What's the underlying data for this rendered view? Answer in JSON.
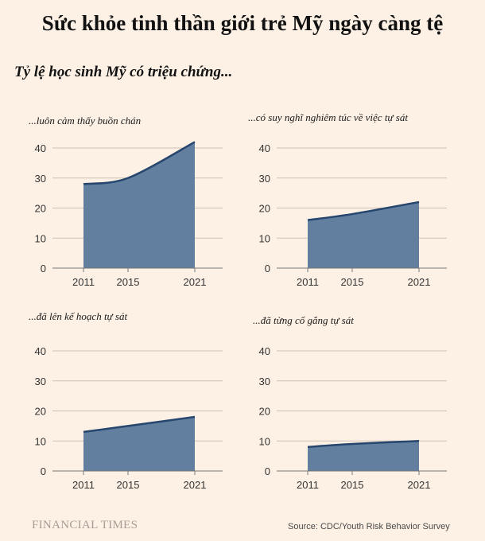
{
  "title": "Sức khỏe tinh thần giới trẻ Mỹ ngày càng tệ",
  "subtitle": "Tỷ lệ học sinh Mỹ có triệu chứng...",
  "branding": "FINANCIAL TIMES",
  "source": "Source: CDC/Youth Risk Behavior Survey",
  "colors": {
    "background": "#fdf1e5",
    "fill": "#627f9f",
    "line": "#27466e",
    "grid": "#cdbfb3",
    "axis": "#777777"
  },
  "chart_data": [
    {
      "type": "area",
      "title": "...luôn cảm thấy buồn chán",
      "x": [
        "2011",
        "2015",
        "2021"
      ],
      "values": [
        28,
        30,
        42
      ],
      "ylim": [
        0,
        40
      ],
      "yticks": [
        0,
        10,
        20,
        30,
        40
      ],
      "xticks": [
        "2011",
        "2015",
        "2021"
      ],
      "grid": true
    },
    {
      "type": "area",
      "title": "...có suy nghĩ nghiêm túc về việc tự sát",
      "x": [
        "2011",
        "2015",
        "2021"
      ],
      "values": [
        16,
        18,
        22
      ],
      "ylim": [
        0,
        40
      ],
      "yticks": [
        0,
        10,
        20,
        30,
        40
      ],
      "xticks": [
        "2011",
        "2015",
        "2021"
      ],
      "grid": true
    },
    {
      "type": "area",
      "title": "...đã lên kế hoạch tự sát",
      "x": [
        "2011",
        "2015",
        "2021"
      ],
      "values": [
        13,
        15,
        18
      ],
      "ylim": [
        0,
        40
      ],
      "yticks": [
        0,
        10,
        20,
        30,
        40
      ],
      "xticks": [
        "2011",
        "2015",
        "2021"
      ],
      "grid": true
    },
    {
      "type": "area",
      "title": "...đã từng cố gắng tự sát",
      "x": [
        "2011",
        "2015",
        "2021"
      ],
      "values": [
        8,
        9,
        10
      ],
      "ylim": [
        0,
        40
      ],
      "yticks": [
        0,
        10,
        20,
        30,
        40
      ],
      "xticks": [
        "2011",
        "2015",
        "2021"
      ],
      "grid": true
    }
  ]
}
